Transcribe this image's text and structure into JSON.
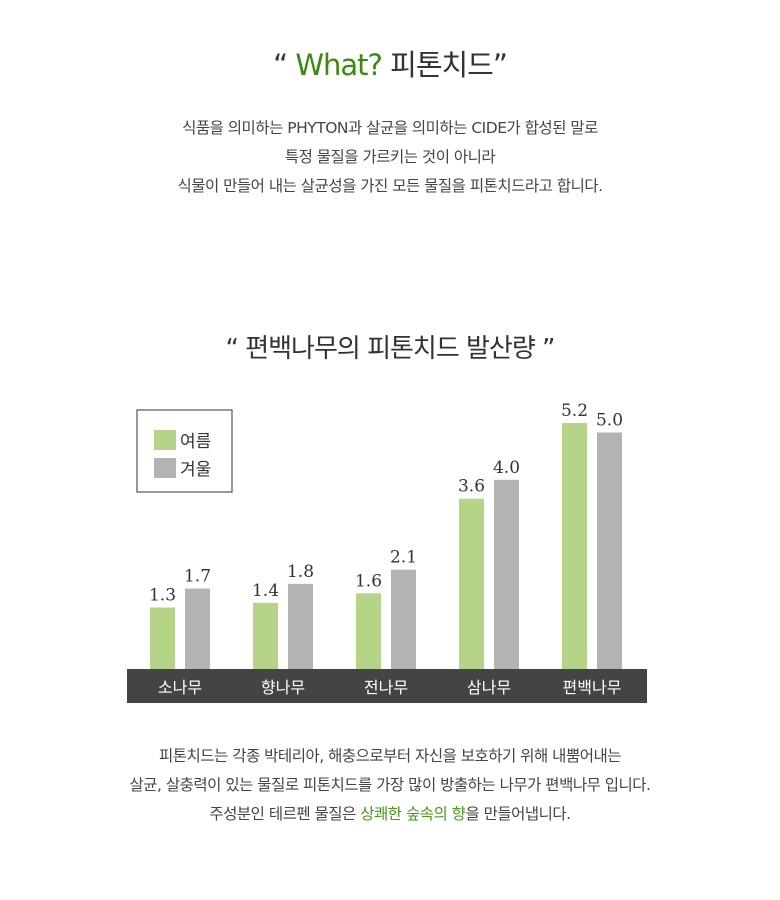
{
  "header": {
    "quote_open": "“ ",
    "title_green": "What?",
    "title_dark": " 피톤치드",
    "quote_close": "”"
  },
  "intro": [
    "식품을 의미하는 PHYTON과 살균을 의미하는 CIDE가 합성된 말로",
    "특정 물질을 가르키는 것이 아니라",
    "식물이 만들어 내는 살균성을 가진 모든 물질을 피톤치드라고 합니다."
  ],
  "chart_title": "“ 편백나무의 피톤치드 발산량 ”",
  "chart_data": {
    "type": "bar",
    "title": "“ 편백나무의 피톤치드 발산량 ”",
    "categories": [
      "소나무",
      "향나무",
      "전나무",
      "삼나무",
      "편백나무"
    ],
    "series": [
      {
        "name": "여름",
        "values": [
          1.3,
          1.4,
          1.6,
          3.6,
          5.2
        ],
        "color": "#b5d488"
      },
      {
        "name": "겨울",
        "values": [
          1.7,
          1.8,
          2.1,
          4.0,
          5.0
        ],
        "color": "#b3b3b3"
      }
    ],
    "ylim": [
      0,
      5.2
    ],
    "grid": false,
    "legend": "top-left",
    "category_band_color": "#444444"
  },
  "footer": {
    "line1": "피톤치드는 각종 박테리아, 해충으로부터 자신을 보호하기 위해 내뿜어내는",
    "line2": "살균, 살충력이 있는 물질로 피톤치드를 가장 많이 방출하는 나무가 편백나무 입니다.",
    "line3_pre": "주성분인 테르펜 물질은 ",
    "line3_highlight": "상쾌한 숲속의 향",
    "line3_post": "을 만들어냅니다."
  }
}
